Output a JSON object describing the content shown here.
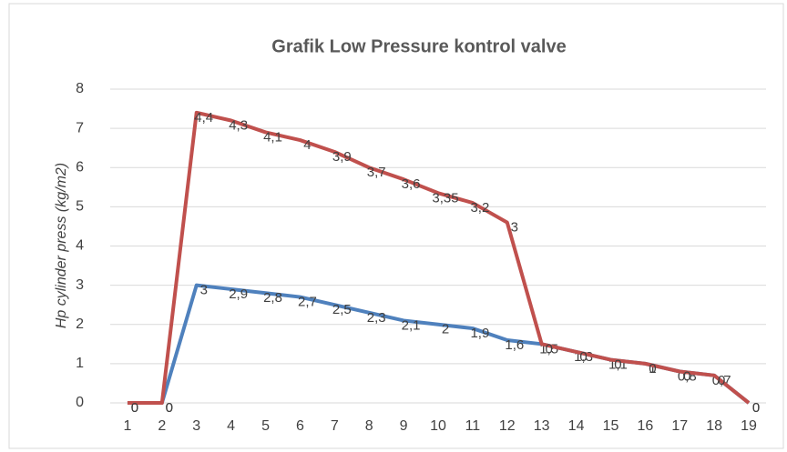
{
  "chart_data": {
    "type": "stacked_line",
    "title": "Grafik Low Pressure kontrol valve",
    "y_label": "Hp cylinder press (kg/m2)",
    "categories": [
      "1",
      "2",
      "3",
      "4",
      "5",
      "6",
      "7",
      "8",
      "9",
      "10",
      "11",
      "12",
      "13",
      "14",
      "15",
      "16",
      "17",
      "18",
      "19"
    ],
    "series": [
      {
        "name": "Blue",
        "color": "#4f81bd",
        "values": [
          0,
          0,
          3,
          2.9,
          2.8,
          2.7,
          2.5,
          2.3,
          2.1,
          2,
          1.9,
          1.6,
          1.5,
          1.3,
          1.1,
          1,
          0.8,
          0.7,
          0
        ],
        "value_labels": [
          "0",
          "0",
          "3",
          "2,9",
          "2,8",
          "2,7",
          "2,5",
          "2,3",
          "2,1",
          "2",
          "1,9",
          "1,6",
          "1,5",
          "1,3",
          "1,1",
          "1",
          "0,8",
          "0,7",
          "0"
        ]
      },
      {
        "name": "Red",
        "color": "#c0504d",
        "values": [
          0,
          0,
          4.4,
          4.3,
          4.1,
          4,
          3.9,
          3.7,
          3.6,
          3.35,
          3.2,
          3,
          0,
          0,
          0,
          0,
          0,
          0,
          0
        ],
        "value_labels": [
          "0",
          "0",
          "4,4",
          "4,3",
          "4,1",
          "4",
          "3,9",
          "3,7",
          "3,6",
          "3,35",
          "3,2",
          "3",
          "0",
          "0",
          "0",
          "0",
          "0",
          "0",
          "0"
        ]
      }
    ],
    "ylim": [
      0,
      8
    ],
    "yticks": [
      0,
      1,
      2,
      3,
      4,
      5,
      6,
      7,
      8
    ],
    "grid": true
  }
}
